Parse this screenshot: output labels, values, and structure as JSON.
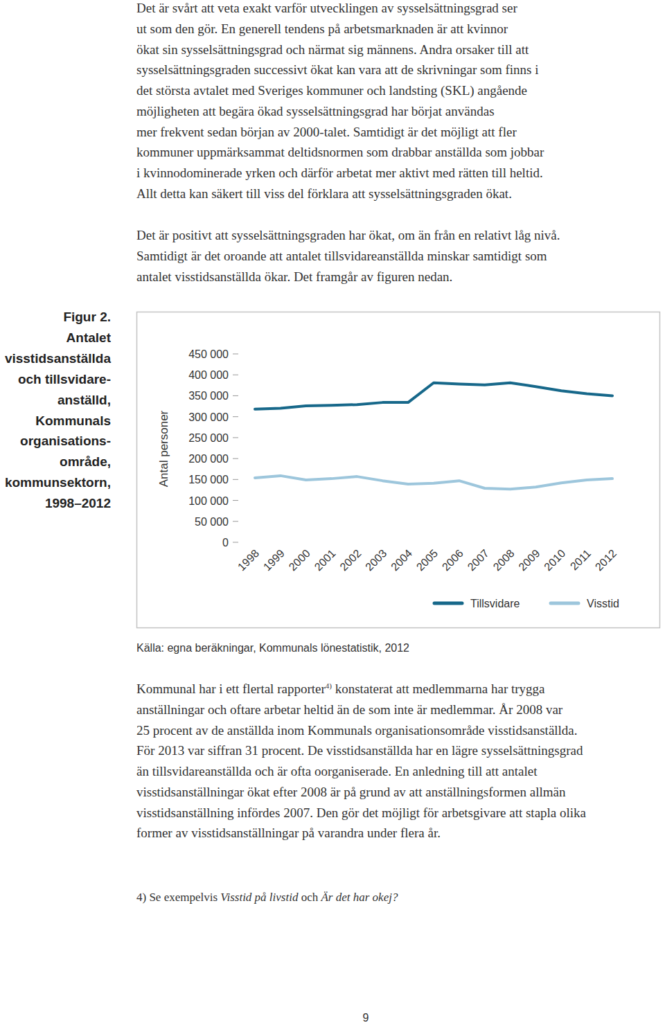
{
  "paragraphs_before": [
    {
      "lines": [
        "Det är svårt att veta exakt varför utvecklingen av sysselsättningsgrad ser",
        "ut som den gör. En generell tendens på arbetsmarknaden är att kvinnor",
        "ökat sin sysselsättningsgrad och närmat sig männens. Andra orsaker till att",
        "sysselsättningsgraden successivt ökat kan vara att de skrivningar som finns i",
        "det största avtalet med Sveriges kommuner och landsting (SKL) angående",
        "möjligheten att begära ökad sysselsättningsgrad har börjat användas",
        "mer frekvent sedan början av 2000-talet. Samtidigt är det möjligt att fler",
        "kommuner uppmärksammat deltidsnormen som drabbar anställda som jobbar",
        "i kvinnodominerade yrken och därför arbetat mer aktivt med rätten till heltid.",
        "Allt detta kan säkert till viss del förklara att sysselsättningsgraden ökat."
      ]
    },
    {
      "lines": [
        "Det är positivt att sysselsättningsgraden har ökat, om än från en relativt låg nivå.",
        "Samtidigt är det oroande att antalet tillsvidareanställda minskar samtidigt som",
        "antalet visstidsanställda ökar. Det framgår av figuren nedan."
      ]
    }
  ],
  "figure": {
    "caption": [
      "Figur 2.",
      "Antalet",
      "visstidsanställda",
      "och tillsvidare-",
      "anställd,",
      "Kommunals",
      "organisations-",
      "område,",
      "kommunsektorn,",
      "1998–2012"
    ]
  },
  "chart_data": {
    "type": "line",
    "y_label": "Antal personer",
    "categories": [
      "1998",
      "1999",
      "2000",
      "2001",
      "2002",
      "2003",
      "2004",
      "2005",
      "2006",
      "2007",
      "2008",
      "2009",
      "2010",
      "2011",
      "2012"
    ],
    "series": [
      {
        "name": "Tillsvidare",
        "color": "#17688a",
        "values": [
          318000,
          320000,
          326000,
          327000,
          329000,
          334000,
          334000,
          381000,
          378000,
          376000,
          381000,
          372000,
          362000,
          355000,
          350000
        ]
      },
      {
        "name": "Visstid",
        "color": "#9dc6dc",
        "values": [
          154000,
          159000,
          149000,
          152000,
          157000,
          147000,
          139000,
          141000,
          147000,
          129000,
          127000,
          132000,
          142000,
          149000,
          152000
        ]
      }
    ],
    "ylim": [
      0,
      450000
    ],
    "yticks": [
      0,
      {
        "value": 50000,
        "label": "50 000"
      },
      {
        "value": 100000,
        "label": "100 000"
      },
      {
        "value": 150000,
        "label": "150 000"
      },
      {
        "value": 200000,
        "label": "200 000"
      },
      {
        "value": 250000,
        "label": "250 000"
      },
      {
        "value": 300000,
        "label": "300 000"
      },
      {
        "value": 350000,
        "label": "350 000"
      },
      {
        "value": 400000,
        "label": "400 000"
      },
      {
        "value": 450000,
        "label": "450 000"
      }
    ],
    "grid": false,
    "legend": "bottom"
  },
  "source": "Källa: egna beräkningar, Kommunals lönestatistik, 2012",
  "paragraphs_after": [
    {
      "lines": [
        {
          "text": "Kommunal har i ett flertal rapporter",
          "sup": "4)",
          "after": " konstaterat att medlemmarna har trygga"
        },
        "anställningar och oftare arbetar heltid än de som inte är medlemmar. År 2008 var",
        "25 procent av de anställda inom Kommunals organisationsområde visstidsanställda.",
        "För 2013 var siffran 31 procent. De visstidsanställda har en lägre sysselsättningsgrad",
        "än tillsvidareanställda och är ofta oorganiserade. En anledning till att antalet",
        "visstidsanställningar ökat efter 2008 är på grund av att anställningsformen allmän",
        "visstidsanställning infördes 2007. Den gör det möjligt för arbetsgivare att stapla olika",
        "former av visstidsanställningar på varandra under flera år."
      ]
    }
  ],
  "footnote": [
    {
      "text": "4) Se exempelvis "
    },
    {
      "text": "Visstid på livstid",
      "italic": true
    },
    {
      "text": " och "
    },
    {
      "text": "Är det har okej?",
      "italic": true
    }
  ],
  "page_number": "9"
}
